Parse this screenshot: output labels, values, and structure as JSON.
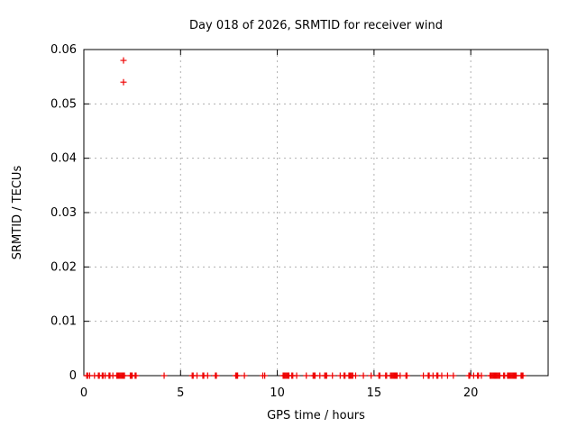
{
  "page": {
    "background": "#ffffff",
    "axes_color": "#000000"
  },
  "chart_data": {
    "type": "scatter",
    "title": "Day 018 of 2026, SRMTID for receiver wind",
    "xlabel": "GPS time / hours",
    "ylabel": "SRMTID / TECUs",
    "xlim": [
      0,
      24
    ],
    "ylim": [
      0,
      0.06
    ],
    "xticks": [
      0,
      5,
      10,
      15,
      20
    ],
    "yticks": [
      0,
      0.01,
      0.02,
      0.03,
      0.04,
      0.05,
      0.06
    ],
    "grid": {
      "visible": true,
      "style": "dashed",
      "color": "#b0b0b0"
    },
    "legend_position": "none",
    "marker": {
      "shape": "plus",
      "size": 7,
      "color": "#ee0000"
    },
    "baseline_y": 0,
    "baseline_x": [
      0.15,
      0.2,
      0.3,
      0.55,
      0.75,
      0.8,
      0.95,
      1.0,
      1.1,
      1.3,
      1.35,
      1.5,
      1.7,
      1.75,
      1.8,
      1.85,
      1.9,
      1.95,
      2.0,
      2.05,
      2.1,
      2.4,
      2.45,
      2.5,
      2.65,
      2.7,
      4.15,
      5.6,
      5.65,
      5.85,
      6.15,
      6.2,
      6.4,
      6.8,
      6.85,
      7.85,
      7.9,
      7.95,
      8.3,
      9.25,
      9.35,
      10.3,
      10.35,
      10.4,
      10.45,
      10.5,
      10.55,
      10.6,
      10.75,
      10.8,
      11.0,
      11.5,
      11.85,
      11.9,
      11.95,
      12.2,
      12.45,
      12.5,
      12.55,
      12.85,
      13.25,
      13.45,
      13.5,
      13.7,
      13.75,
      13.8,
      13.85,
      13.9,
      14.05,
      14.45,
      14.85,
      15.25,
      15.3,
      15.6,
      15.65,
      15.85,
      15.9,
      15.95,
      16.0,
      16.05,
      16.1,
      16.15,
      16.2,
      16.35,
      16.65,
      16.7,
      17.55,
      17.8,
      17.85,
      18.05,
      18.25,
      18.3,
      18.5,
      18.8,
      19.1,
      19.9,
      19.95,
      20.15,
      20.35,
      20.4,
      20.55,
      21.0,
      21.05,
      21.1,
      21.15,
      21.2,
      21.25,
      21.3,
      21.35,
      21.4,
      21.45,
      21.5,
      21.7,
      21.75,
      21.9,
      21.95,
      22.0,
      22.05,
      22.1,
      22.15,
      22.2,
      22.25,
      22.3,
      22.35,
      22.6,
      22.65,
      22.7
    ],
    "outliers": [
      [
        2.05,
        0.058
      ],
      [
        2.05,
        0.054
      ]
    ]
  }
}
